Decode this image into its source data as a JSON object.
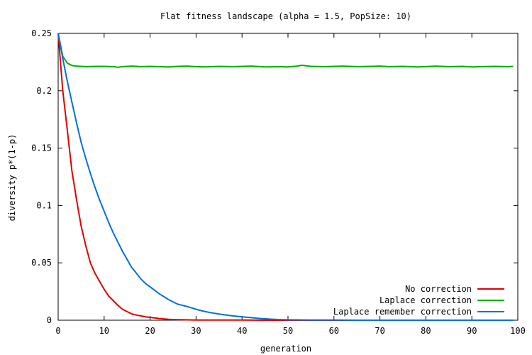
{
  "chart_data": {
    "type": "line",
    "title": "Flat fitness landscape (alpha = 1.5, PopSize: 10)",
    "xlabel": "generation",
    "ylabel": "diversity p*(1-p)",
    "xlim": [
      0,
      100
    ],
    "ylim": [
      0,
      0.25
    ],
    "xticks": [
      0,
      10,
      20,
      30,
      40,
      50,
      60,
      70,
      80,
      90,
      100
    ],
    "yticks": [
      0,
      0.05,
      0.1,
      0.15,
      0.2,
      0.25
    ],
    "xtick_labels": [
      "0",
      "10",
      "20",
      "30",
      "40",
      "50",
      "60",
      "70",
      "80",
      "90",
      "100"
    ],
    "ytick_labels": [
      "0",
      "0.05",
      "0.1",
      "0.15",
      "0.2",
      "0.25"
    ],
    "grid": false,
    "legend_position": "bottom-right",
    "series": [
      {
        "name": "No correction",
        "color": "#e00000",
        "x": [
          0,
          1,
          2,
          3,
          4,
          5,
          6,
          7,
          8,
          9,
          10,
          11,
          12,
          13,
          14,
          15,
          16,
          17,
          18,
          19,
          20,
          22,
          24,
          26,
          28,
          30,
          35,
          40,
          45,
          50,
          55,
          60,
          65
        ],
        "y": [
          0.25,
          0.2,
          0.165,
          0.13,
          0.105,
          0.082,
          0.065,
          0.05,
          0.041,
          0.034,
          0.027,
          0.021,
          0.017,
          0.013,
          0.0095,
          0.0075,
          0.0055,
          0.0045,
          0.0038,
          0.003,
          0.0025,
          0.0015,
          0.0008,
          0.0005,
          0.0003,
          0.0002,
          0.0001,
          0.0001,
          0.0,
          0.0,
          0.0,
          0.0,
          0.0
        ]
      },
      {
        "name": "Laplace correction",
        "color": "#00b000",
        "x": [
          0,
          1,
          2,
          3,
          4,
          5,
          6,
          8,
          10,
          12,
          13,
          14,
          16,
          18,
          20,
          22,
          24,
          26,
          28,
          30,
          32,
          35,
          38,
          40,
          42,
          45,
          48,
          50,
          52,
          53,
          55,
          58,
          60,
          62,
          65,
          68,
          70,
          72,
          75,
          78,
          80,
          82,
          85,
          88,
          90,
          92,
          95,
          98,
          99
        ],
        "y": [
          0.25,
          0.23,
          0.224,
          0.222,
          0.2215,
          0.2212,
          0.221,
          0.2212,
          0.2212,
          0.221,
          0.2205,
          0.221,
          0.2215,
          0.221,
          0.2212,
          0.221,
          0.2208,
          0.2212,
          0.2215,
          0.221,
          0.2208,
          0.2212,
          0.221,
          0.2212,
          0.2215,
          0.2208,
          0.221,
          0.2207,
          0.2215,
          0.2222,
          0.2212,
          0.221,
          0.2212,
          0.2215,
          0.221,
          0.2212,
          0.2215,
          0.221,
          0.2212,
          0.2208,
          0.221,
          0.2215,
          0.221,
          0.2212,
          0.2208,
          0.221,
          0.2212,
          0.221,
          0.2212
        ]
      },
      {
        "name": "Laplace remember correction",
        "color": "#0070e0",
        "x": [
          0,
          1,
          2,
          3,
          4,
          5,
          6,
          7,
          8,
          9,
          10,
          11,
          12,
          13,
          14,
          15,
          16,
          17,
          18,
          19,
          20,
          22,
          24,
          26,
          28,
          30,
          32,
          34,
          36,
          38,
          40,
          42,
          44,
          46,
          48,
          50,
          55,
          60,
          65,
          70,
          75,
          80,
          85,
          90,
          95,
          99
        ],
        "y": [
          0.25,
          0.228,
          0.208,
          0.19,
          0.172,
          0.155,
          0.141,
          0.128,
          0.116,
          0.105,
          0.095,
          0.085,
          0.076,
          0.068,
          0.06,
          0.053,
          0.046,
          0.041,
          0.036,
          0.032,
          0.029,
          0.023,
          0.018,
          0.014,
          0.012,
          0.0095,
          0.0075,
          0.006,
          0.0048,
          0.0038,
          0.003,
          0.0022,
          0.0015,
          0.001,
          0.0006,
          0.0004,
          0.0002,
          0.0001,
          0.0,
          0.0,
          0.0,
          0.0,
          0.0,
          0.0,
          0.0,
          0.0
        ]
      }
    ]
  }
}
